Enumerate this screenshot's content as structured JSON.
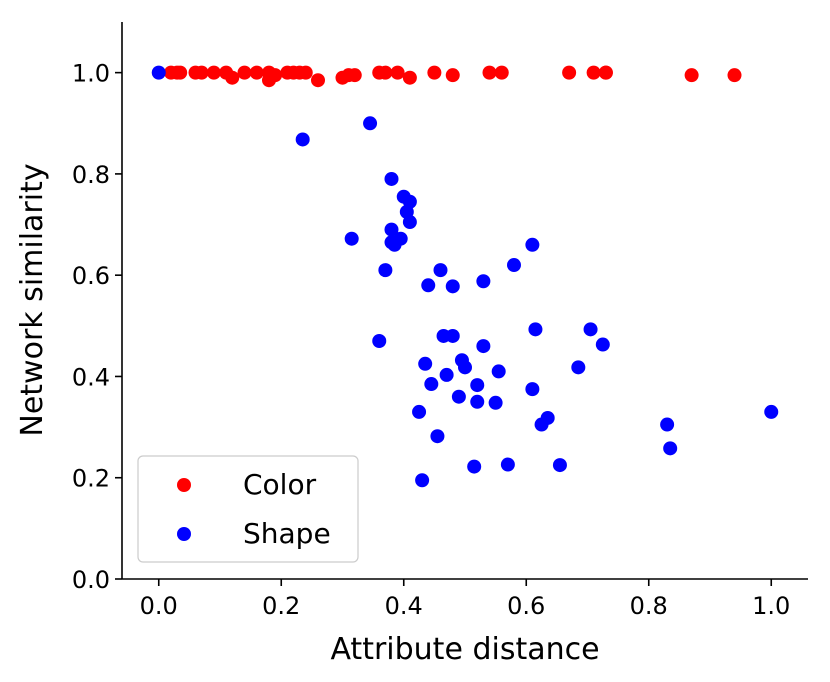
{
  "chart_data": {
    "type": "scatter",
    "xlabel": "Attribute distance",
    "ylabel": "Network similarity",
    "xlim": [
      -0.06,
      1.06
    ],
    "ylim": [
      0.0,
      1.1
    ],
    "x_ticks": [
      0.0,
      0.2,
      0.4,
      0.6,
      0.8,
      1.0
    ],
    "x_tick_labels": [
      "0.0",
      "0.2",
      "0.4",
      "0.6",
      "0.8",
      "1.0"
    ],
    "y_ticks": [
      0.0,
      0.2,
      0.4,
      0.6,
      0.8,
      1.0
    ],
    "y_tick_labels": [
      "0.0",
      "0.2",
      "0.4",
      "0.6",
      "0.8",
      "1.0"
    ],
    "grid": false,
    "legend": "lower-left",
    "series": [
      {
        "name": "Color",
        "color": "#ff0000",
        "x": [
          0.02,
          0.03,
          0.035,
          0.06,
          0.07,
          0.09,
          0.11,
          0.12,
          0.14,
          0.16,
          0.18,
          0.18,
          0.19,
          0.21,
          0.22,
          0.23,
          0.24,
          0.26,
          0.3,
          0.31,
          0.32,
          0.36,
          0.37,
          0.39,
          0.41,
          0.45,
          0.48,
          0.54,
          0.56,
          0.67,
          0.71,
          0.73,
          0.73,
          0.87,
          0.94
        ],
        "y": [
          1.0,
          1.0,
          1.0,
          1.0,
          1.0,
          1.0,
          1.0,
          0.99,
          1.0,
          1.0,
          1.0,
          0.985,
          0.995,
          1.0,
          1.0,
          1.0,
          1.0,
          0.985,
          0.99,
          0.995,
          0.995,
          1.0,
          1.0,
          1.0,
          0.99,
          1.0,
          0.995,
          1.0,
          1.0,
          1.0,
          1.0,
          1.0,
          1.0,
          0.995,
          0.995
        ]
      },
      {
        "name": "Shape",
        "color": "#0000ff",
        "x": [
          0.0,
          0.235,
          0.345,
          0.38,
          0.4,
          0.41,
          0.405,
          0.41,
          0.38,
          0.315,
          0.38,
          0.385,
          0.395,
          0.37,
          0.46,
          0.44,
          0.48,
          0.53,
          0.58,
          0.61,
          0.36,
          0.465,
          0.48,
          0.53,
          0.615,
          0.705,
          0.725,
          0.435,
          0.47,
          0.495,
          0.5,
          0.555,
          0.445,
          0.52,
          0.49,
          0.52,
          0.55,
          0.61,
          0.685,
          0.425,
          0.635,
          0.625,
          0.455,
          0.515,
          0.57,
          0.655,
          0.43,
          0.83,
          0.835,
          1.0
        ],
        "y": [
          1.0,
          0.868,
          0.9,
          0.79,
          0.755,
          0.745,
          0.725,
          0.705,
          0.69,
          0.672,
          0.665,
          0.66,
          0.672,
          0.61,
          0.61,
          0.58,
          0.578,
          0.588,
          0.62,
          0.66,
          0.47,
          0.48,
          0.48,
          0.46,
          0.493,
          0.493,
          0.463,
          0.425,
          0.403,
          0.432,
          0.418,
          0.41,
          0.385,
          0.383,
          0.36,
          0.35,
          0.348,
          0.375,
          0.418,
          0.33,
          0.318,
          0.305,
          0.282,
          0.222,
          0.226,
          0.225,
          0.195,
          0.305,
          0.258,
          0.33
        ]
      }
    ]
  }
}
